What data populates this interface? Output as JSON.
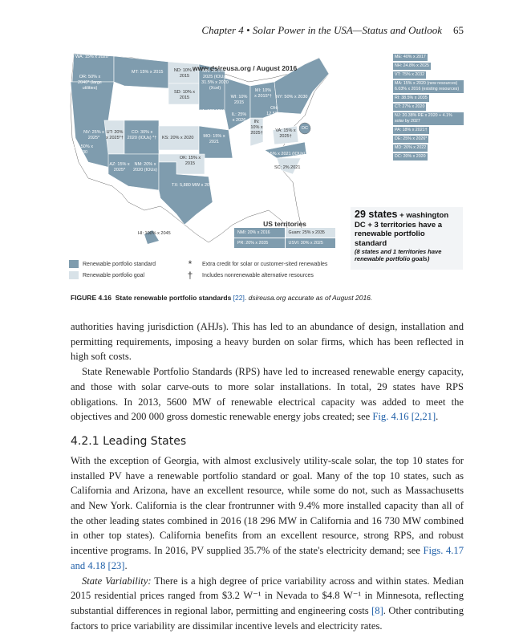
{
  "header": {
    "chapter": "Chapter 4 • Solar Power in the USA—Status and Outlook",
    "page_number": "65"
  },
  "figure": {
    "map_title": "www.dsireusa.org / August 2016",
    "colors": {
      "standard": "#7f9cae",
      "goal": "#d8e2e8"
    },
    "states": [
      {
        "label": "WA: 15% x 2020*",
        "type": "standard"
      },
      {
        "label": "MT: 15% x 2015",
        "type": "standard"
      },
      {
        "label": "ND: 10% x 2015",
        "type": "goal"
      },
      {
        "label": "MN: 26.5% x 2025 (IOUs) 31.5% x 2020 (Xcel)",
        "type": "standard"
      },
      {
        "label": "OR: 50% x 2040* (large utilities)",
        "type": "standard"
      },
      {
        "label": "SD: 10% x 2015",
        "type": "goal"
      },
      {
        "label": "WI: 10% 2015",
        "type": "standard"
      },
      {
        "label": "MI: 10% x 2015*†",
        "type": "standard"
      },
      {
        "label": "NY: 50% x 2030",
        "type": "standard"
      },
      {
        "label": "IA: 105 MW",
        "type": "standard"
      },
      {
        "label": "IL: 25% x 2026",
        "type": "standard"
      },
      {
        "label": "IN: 10% x 2025†",
        "type": "goal"
      },
      {
        "label": "OH: 12.5% x 2026",
        "type": "standard"
      },
      {
        "label": "NV: 25% x 2025*",
        "type": "standard"
      },
      {
        "label": "UT: 20% x 2025*†",
        "type": "goal"
      },
      {
        "label": "CO: 30% x 2020 (IOUs) *†",
        "type": "standard"
      },
      {
        "label": "KS: 20% x 2020",
        "type": "goal"
      },
      {
        "label": "MO: 15% x 2021",
        "type": "standard"
      },
      {
        "label": "VA: 15% x 2025†",
        "type": "goal"
      },
      {
        "label": "CA: 50% x 2030",
        "type": "standard"
      },
      {
        "label": "AZ: 15% x 2025*",
        "type": "standard"
      },
      {
        "label": "NM: 20% x 2020 (IOUs)",
        "type": "standard"
      },
      {
        "label": "OK: 15% x 2015",
        "type": "goal"
      },
      {
        "label": "NC: 12.5% x 2021 (IOUs)",
        "type": "standard"
      },
      {
        "label": "SC: 2% 2021",
        "type": "goal"
      },
      {
        "label": "TX: 5,880 MW x 2015*",
        "type": "standard"
      },
      {
        "label": "HI: 100% x 2045",
        "type": "standard"
      },
      {
        "label": "DC",
        "type": "standard"
      }
    ],
    "northeast": [
      "ME: 40% x 2017",
      "NH: 24.8% x 2025",
      "VT: 75% x 2032",
      "MA: 15% x 2020 (new resources) 6.03% x 2016 (existing resources)",
      "RI: 38.5% x 2035",
      "CT: 27% x 2020",
      "NJ: 20.38% RE x 2020 + 4.1% solar by 2027",
      "PA: 18% x 2021†",
      "DE: 25% x 2026*",
      "MD: 20% x 2022",
      "DC: 20% x 2020"
    ],
    "territories": {
      "title": "US territories",
      "items": [
        {
          "label": "NMI: 20% x 2016",
          "type": "standard"
        },
        {
          "label": "Guam: 25% x 2035",
          "type": "goal"
        },
        {
          "label": "PR: 20% x 2035",
          "type": "standard"
        },
        {
          "label": "USVI: 30% x 2025",
          "type": "standard"
        }
      ]
    },
    "info": {
      "big": "29 states",
      "line1": "+ washington DC + 3 territories have a renewable portfolio standard",
      "note": "(8 states and 1 territories have renewable portfolio goals)"
    },
    "legend": {
      "standard": "Renewable portfolio standard",
      "goal": "Renewable portfolio goal",
      "asterisk": "Extra credit for solar or customer-sited renewables",
      "asterisk_symbol": "*",
      "dagger": "Includes nonrenewable alternative resources",
      "dagger_symbol": "†"
    },
    "caption": {
      "label": "FIGURE 4.16",
      "title": "State renewable portfolio standards",
      "ref": "[22]",
      "rest": "dsireusa.org accurate as of August 2016."
    }
  },
  "body": {
    "p1": "authorities having jurisdiction (AHJs). This has led to an abundance of design, installation and permitting requirements, imposing a heavy burden on solar firms, which has been reflected in high soft costs.",
    "p2a": "State Renewable Portfolio Standards (RPS) have led to increased renewable energy capacity, and those with solar carve-outs to more solar installations. In total, 29 states have RPS obligations. In 2013, 5600 MW of renewable electrical capacity was added to meet the objectives and 200 000 gross domestic renewable energy jobs created; see ",
    "p2ref": "Fig. 4.16 [2,21]",
    "p2end": ".",
    "heading": "4.2.1 Leading States",
    "p3a": "With the exception of Georgia, with almost exclusively utility-scale solar, the top 10 states for installed PV have a renewable portfolio standard or goal. Many of the top 10 states, such as California and Arizona, have an excellent resource, while some do not, such as Massachusetts and New York. California is the clear frontrunner with 9.4% more installed capacity than all of the other leading states combined in 2016 (18 296 MW in California and 16 730 MW combined in other top states). California benefits from an excellent resource, strong RPS, and robust incentive programs. In 2016, PV supplied 35.7% of the state's electricity demand; see ",
    "p3ref": "Figs. 4.17 and 4.18 [23]",
    "p3end": ".",
    "p4lead": "State Variability:",
    "p4a": " There is a high degree of price variability across and within states. Median 2015 residential prices ranged from $3.2 W⁻¹ in Nevada to $4.8 W⁻¹ in Minnesota, reflecting substantial differences in regional labor, permitting and engineering costs ",
    "p4ref": "[8]",
    "p4b": ". Other contributing factors to price variability are dissimilar incentive levels and electricity rates."
  }
}
